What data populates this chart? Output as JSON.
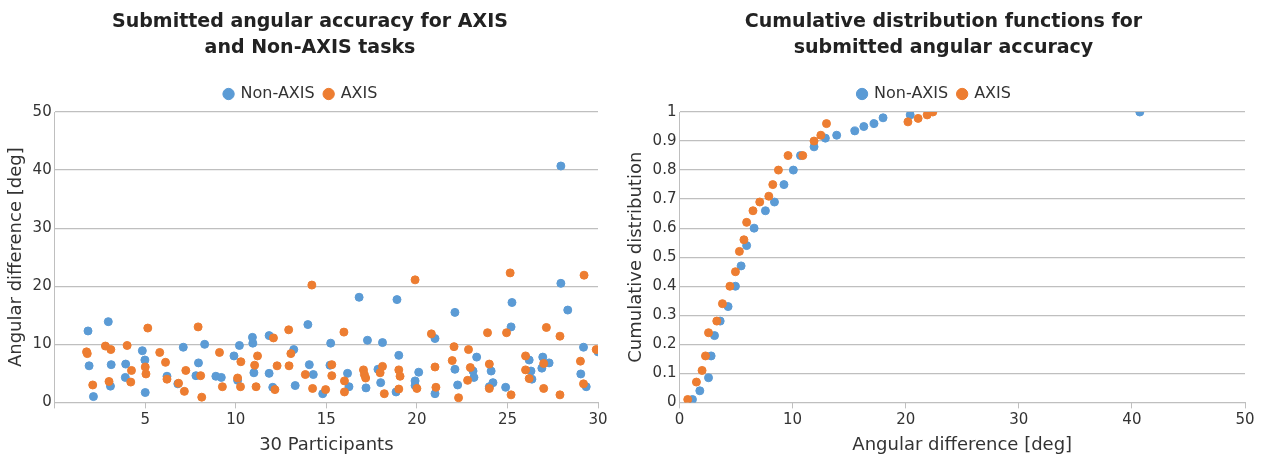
{
  "chart_data": [
    {
      "type": "scatter",
      "title": "Submitted angular accuracy for AXIS and Non-AXIS tasks",
      "xlabel": "30 Participants",
      "ylabel": "Angular difference [deg]",
      "xlim": [
        0,
        30
      ],
      "xticks": [
        {
          "value": 0,
          "label": null
        },
        5,
        10,
        15,
        20,
        25,
        30
      ],
      "ylim": [
        0,
        50
      ],
      "yticks": [
        0,
        10,
        20,
        30,
        40,
        50
      ],
      "grid": "y",
      "legend": "top",
      "marker": "circle",
      "series": [
        {
          "name": "Non-AXIS",
          "color": "#5b9bd5",
          "x": [
            1.84,
            1.9,
            2.14,
            2.96,
            3.12,
            3.08,
            3.92,
            3.9,
            4.84,
            4.98,
            5.0,
            6.2,
            6.8,
            7.1,
            7.94,
            7.8,
            8.28,
            8.9,
            9.2,
            9.9,
            10.2,
            10.1,
            10.92,
            10.94,
            11.0,
            11.84,
            11.84,
            12.04,
            13.2,
            13.28,
            13.98,
            14.06,
            14.28,
            14.8,
            15.24,
            15.2,
            16.17,
            16.25,
            16.81,
            17.19,
            17.27,
            17.85,
            18.0,
            18.1,
            18.9,
            19.0,
            18.85,
            19.9,
            19.9,
            20.1,
            21.0,
            21.0,
            22.1,
            22.1,
            22.25,
            23.1,
            23.15,
            23.3,
            24.1,
            24.2,
            24.0,
            24.9,
            25.2,
            25.25,
            26.2,
            26.3,
            26.35,
            26.95,
            26.9,
            27.3,
            27.95,
            27.95,
            28.33,
            29.2,
            29.05,
            29.35,
            30.0
          ],
          "values": [
            12.3,
            6.3,
            1.0,
            13.9,
            6.5,
            2.8,
            6.6,
            4.3,
            8.9,
            7.3,
            1.7,
            4.5,
            3.2,
            9.5,
            6.8,
            4.6,
            10.0,
            4.5,
            4.3,
            8.0,
            9.8,
            3.8,
            11.2,
            10.2,
            5.1,
            11.5,
            5.0,
            2.6,
            9.1,
            2.9,
            13.4,
            6.5,
            4.8,
            1.5,
            10.2,
            6.4,
            5.0,
            2.7,
            18.1,
            2.5,
            10.7,
            5.7,
            3.4,
            10.3,
            17.7,
            8.1,
            1.8,
            3.7,
            2.9,
            5.2,
            1.5,
            11.0,
            15.5,
            5.7,
            3.0,
            5.4,
            4.3,
            7.8,
            5.4,
            3.4,
            2.7,
            2.6,
            13.0,
            17.2,
            7.3,
            5.4,
            4.0,
            7.8,
            5.9,
            6.8,
            40.7,
            20.5,
            15.9,
            9.5,
            4.9,
            2.7,
            8.7
          ]
        },
        {
          "name": "AXIS",
          "color": "#ed7d31",
          "x": [
            1.76,
            1.8,
            2.1,
            2.8,
            3.1,
            3.0,
            4.0,
            4.24,
            4.2,
            5.14,
            5.0,
            5.04,
            5.8,
            6.12,
            6.2,
            6.84,
            7.16,
            7.24,
            7.92,
            8.06,
            8.12,
            9.1,
            9.26,
            10.1,
            10.28,
            10.26,
            11.04,
            11.2,
            11.12,
            12.08,
            12.16,
            12.28,
            12.92,
            13.04,
            12.94,
            13.84,
            14.2,
            14.24,
            14.96,
            15.3,
            15.3,
            15.97,
            16.0,
            16.0,
            17.05,
            17.1,
            17.17,
            17.97,
            18.1,
            18.2,
            19.0,
            19.07,
            19.0,
            19.9,
            20.0,
            20.8,
            21.0,
            21.05,
            22.05,
            21.95,
            22.3,
            22.85,
            22.95,
            22.8,
            23.9,
            24.0,
            24.0,
            25.15,
            24.95,
            25.2,
            26.0,
            26.0,
            26.2,
            27.0,
            27.0,
            27.15,
            27.9,
            27.9,
            29.03,
            29.2,
            29.23,
            29.9
          ],
          "values": [
            8.7,
            8.4,
            3.0,
            9.7,
            9.1,
            3.6,
            9.8,
            5.5,
            3.5,
            12.8,
            6.1,
            4.9,
            8.6,
            6.9,
            4.0,
            3.3,
            1.9,
            5.5,
            13.0,
            4.6,
            0.9,
            8.6,
            2.7,
            4.2,
            7.0,
            2.7,
            6.4,
            8.0,
            2.7,
            11.1,
            2.2,
            6.3,
            12.5,
            8.4,
            6.3,
            4.8,
            20.2,
            2.4,
            2.2,
            6.5,
            4.6,
            12.1,
            3.7,
            1.8,
            5.6,
            4.8,
            4.2,
            5.1,
            6.2,
            1.5,
            5.6,
            4.5,
            2.3,
            21.1,
            2.4,
            11.8,
            6.1,
            2.6,
            9.6,
            7.2,
            0.8,
            9.1,
            6.0,
            3.8,
            12.0,
            6.6,
            2.4,
            22.3,
            12.0,
            1.3,
            8.0,
            5.6,
            4.1,
            6.7,
            2.4,
            12.9,
            11.4,
            1.3,
            7.1,
            3.2,
            21.9,
            9.1
          ]
        }
      ]
    },
    {
      "type": "scatter",
      "title": "Cumulative distribution functions for submitted angular accuracy",
      "xlabel": "Angular difference [deg]",
      "ylabel": "Cumulative distribution",
      "xlim": [
        0,
        50
      ],
      "xticks": [
        0,
        10,
        20,
        30,
        40,
        50
      ],
      "ylim": [
        0,
        1
      ],
      "yticks": [
        0,
        0.1,
        0.2,
        0.3,
        0.4,
        0.5,
        0.6,
        0.7,
        0.8,
        0.9,
        1
      ],
      "grid": "y",
      "legend": "top",
      "marker": "circle",
      "series": [
        {
          "name": "Non-AXIS",
          "color": "#5b9bd5",
          "x": [
            1.15,
            1.8,
            2.57,
            2.8,
            3.1,
            3.6,
            4.3,
            4.95,
            5.45,
            5.94,
            6.6,
            7.6,
            8.4,
            9.24,
            10.07,
            10.7,
            11.9,
            12.9,
            13.9,
            15.5,
            16.3,
            17.2,
            18.0,
            20.4,
            40.7
          ],
          "values": [
            0.01,
            0.04,
            0.085,
            0.16,
            0.23,
            0.28,
            0.33,
            0.4,
            0.47,
            0.54,
            0.6,
            0.66,
            0.69,
            0.75,
            0.8,
            0.85,
            0.88,
            0.91,
            0.92,
            0.935,
            0.95,
            0.96,
            0.98,
            0.99,
            1.0
          ]
        },
        {
          "name": "AXIS",
          "color": "#ed7d31",
          "x": [
            0.73,
            1.5,
            2.0,
            2.3,
            2.57,
            3.3,
            3.8,
            4.46,
            4.95,
            5.3,
            5.7,
            5.94,
            6.5,
            7.1,
            7.9,
            8.25,
            8.75,
            9.6,
            10.9,
            11.9,
            12.5,
            13.0,
            20.2,
            21.1,
            21.9,
            22.4
          ],
          "values": [
            0.01,
            0.07,
            0.11,
            0.16,
            0.24,
            0.28,
            0.34,
            0.4,
            0.45,
            0.52,
            0.56,
            0.62,
            0.66,
            0.69,
            0.71,
            0.75,
            0.8,
            0.85,
            0.85,
            0.9,
            0.92,
            0.96,
            0.966,
            0.978,
            0.99,
            1.0
          ]
        }
      ]
    }
  ]
}
